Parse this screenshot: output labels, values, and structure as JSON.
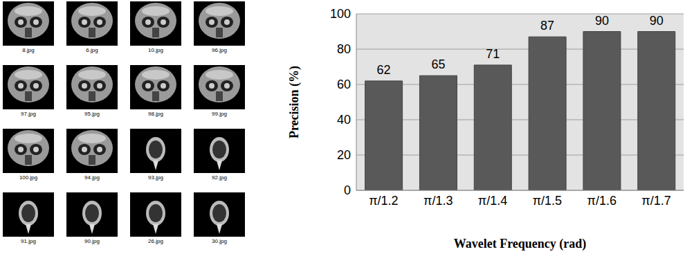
{
  "image_grid": {
    "captions": [
      "8.jpg",
      "6.jpg",
      "10.jpg",
      "96.jpg",
      "97.jpg",
      "95.jpg",
      "98.jpg",
      "99.jpg",
      "100.jpg",
      "94.jpg",
      "93.jpg",
      "92.jpg",
      "91.jpg",
      "90.jpg",
      "26.jpg",
      "30.jpg"
    ]
  },
  "chart_data": {
    "type": "bar",
    "categories": [
      "π/1.2",
      "π/1.3",
      "π/1.4",
      "π/1.5",
      "π/1.6",
      "π/1.7"
    ],
    "values": [
      62,
      65,
      71,
      87,
      90,
      90
    ],
    "color": "#595959",
    "ylim": [
      0,
      100
    ],
    "yticks": [
      0,
      20,
      40,
      60,
      80,
      100
    ],
    "grid": true,
    "data_labels": true,
    "xlabel": "Wavelet Frequency (rad)",
    "ylabel": "Precision (%)"
  }
}
